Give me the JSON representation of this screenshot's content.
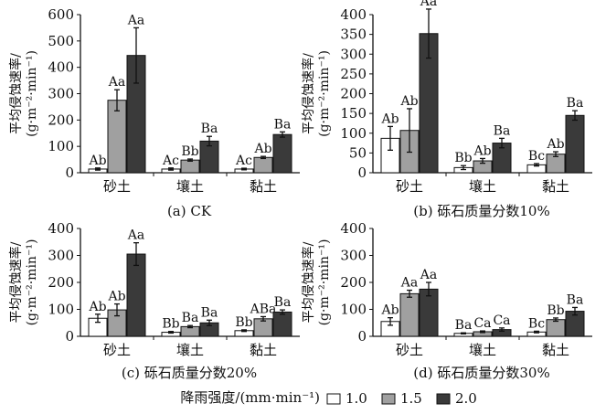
{
  "legend": {
    "title": "降雨强度/(mm·min⁻¹)",
    "entries": [
      {
        "label": "1.0",
        "color": "#ffffff"
      },
      {
        "label": "1.5",
        "color": "#a0a0a0"
      },
      {
        "label": "2.0",
        "color": "#3a3a3a"
      }
    ]
  },
  "chart_data": [
    {
      "type": "bar",
      "caption": "(a) CK",
      "ylabel_line1": "平均侵蚀速率/",
      "ylabel_line2": "(g·m⁻²·min⁻¹)",
      "ylim": [
        0,
        600
      ],
      "yticks": [
        0,
        100,
        200,
        300,
        400,
        500,
        600
      ],
      "categories": [
        "砂土",
        "壤土",
        "黏土"
      ],
      "series": [
        {
          "name": "1.0",
          "values": [
            14,
            14,
            14
          ],
          "errors": [
            4,
            4,
            3
          ],
          "labels": [
            "Ab",
            "Ac",
            "Ac"
          ]
        },
        {
          "name": "1.5",
          "values": [
            275,
            48,
            58
          ],
          "errors": [
            40,
            4,
            4
          ],
          "labels": [
            "Aa",
            "Bb",
            "Ab"
          ]
        },
        {
          "name": "2.0",
          "values": [
            445,
            120,
            145
          ],
          "errors": [
            105,
            18,
            10
          ],
          "labels": [
            "Aa",
            "Ba",
            "Ba"
          ]
        }
      ]
    },
    {
      "type": "bar",
      "caption": "(b) 砾石质量分数10%",
      "ylabel_line1": "平均侵蚀速率/",
      "ylabel_line2": "(g·m⁻²·min⁻¹)",
      "ylim": [
        0,
        400
      ],
      "yticks": [
        0,
        50,
        100,
        150,
        200,
        250,
        300,
        350,
        400
      ],
      "categories": [
        "砂土",
        "壤土",
        "黏土"
      ],
      "series": [
        {
          "name": "1.0",
          "values": [
            87,
            13,
            20
          ],
          "errors": [
            30,
            5,
            3
          ],
          "labels": [
            "Ab",
            "Bb",
            "Bc"
          ]
        },
        {
          "name": "1.5",
          "values": [
            107,
            30,
            47
          ],
          "errors": [
            55,
            6,
            6
          ],
          "labels": [
            "Ab",
            "Ab",
            "Ab"
          ]
        },
        {
          "name": "2.0",
          "values": [
            352,
            75,
            145
          ],
          "errors": [
            62,
            12,
            12
          ],
          "labels": [
            "Aa",
            "Ba",
            "Ba"
          ]
        }
      ]
    },
    {
      "type": "bar",
      "caption": "(c) 砾石质量分数20%",
      "ylabel_line1": "平均侵蚀速率/",
      "ylabel_line2": "(g·m⁻²·min⁻¹)",
      "ylim": [
        0,
        400
      ],
      "yticks": [
        0,
        100,
        200,
        300,
        400
      ],
      "categories": [
        "砂土",
        "壤土",
        "黏土"
      ],
      "series": [
        {
          "name": "1.0",
          "values": [
            67,
            15,
            21
          ],
          "errors": [
            15,
            3,
            3
          ],
          "labels": [
            "Ab",
            "Bb",
            "Bb"
          ]
        },
        {
          "name": "1.5",
          "values": [
            98,
            36,
            65
          ],
          "errors": [
            22,
            4,
            8
          ],
          "labels": [
            "Ab",
            "Ba",
            "ABa"
          ]
        },
        {
          "name": "2.0",
          "values": [
            305,
            50,
            90
          ],
          "errors": [
            42,
            10,
            8
          ],
          "labels": [
            "Aa",
            "Ba",
            "Ba"
          ]
        }
      ]
    },
    {
      "type": "bar",
      "caption": "(d) 砾石质量分数30%",
      "ylabel_line1": "平均侵蚀速率/",
      "ylabel_line2": "(g·m⁻²·min⁻¹)",
      "ylim": [
        0,
        400
      ],
      "yticks": [
        0,
        100,
        200,
        300,
        400
      ],
      "categories": [
        "砂土",
        "壤土",
        "黏土"
      ],
      "series": [
        {
          "name": "1.0",
          "values": [
            55,
            11,
            16
          ],
          "errors": [
            14,
            2,
            3
          ],
          "labels": [
            "Ab",
            "Ba",
            "Bc"
          ]
        },
        {
          "name": "1.5",
          "values": [
            158,
            17,
            62
          ],
          "errors": [
            13,
            3,
            6
          ],
          "labels": [
            "Aa",
            "Ca",
            "Bb"
          ]
        },
        {
          "name": "2.0",
          "values": [
            175,
            25,
            93
          ],
          "errors": [
            25,
            6,
            14
          ],
          "labels": [
            "Aa",
            "Ca",
            "Ba"
          ]
        }
      ]
    }
  ]
}
